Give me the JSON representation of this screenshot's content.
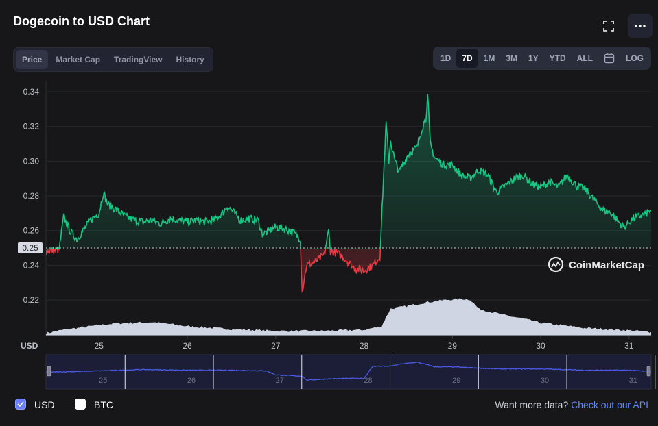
{
  "header": {
    "title": "Dogecoin to USD Chart",
    "fullscreen_icon": "fullscreen-icon",
    "more_icon": "more-horizontal-icon"
  },
  "tabs": [
    {
      "label": "Price",
      "active": true
    },
    {
      "label": "Market Cap",
      "active": false
    },
    {
      "label": "TradingView",
      "active": false
    },
    {
      "label": "History",
      "active": false
    }
  ],
  "ranges": [
    {
      "label": "1D",
      "active": false
    },
    {
      "label": "7D",
      "active": true
    },
    {
      "label": "1M",
      "active": false
    },
    {
      "label": "3M",
      "active": false
    },
    {
      "label": "1Y",
      "active": false
    },
    {
      "label": "YTD",
      "active": false
    },
    {
      "label": "ALL",
      "active": false
    },
    {
      "label": "LOG",
      "active": false
    }
  ],
  "calendar_icon": "calendar-icon",
  "watermark": "CoinMarketCap",
  "footer": {
    "usd_label": "USD",
    "btc_label": "BTC",
    "more_text": "Want more data?",
    "api_link": "Check out our API",
    "usd_checked": true,
    "btc_checked": false
  },
  "colors": {
    "up": "#16c784",
    "down": "#ea3943",
    "volume": "#d0d5e4",
    "navigator_line": "#4a5be6",
    "link": "#6188ff"
  },
  "chart_data": {
    "type": "line",
    "ylabel": "",
    "xlabel": "USD",
    "ylim": [
      0.2,
      0.345
    ],
    "yticks": [
      0.22,
      0.24,
      0.26,
      0.28,
      0.3,
      0.32,
      0.34
    ],
    "xlim": [
      24.4,
      31.25
    ],
    "xticks": [
      "25",
      "26",
      "27",
      "28",
      "29",
      "30",
      "31"
    ],
    "baseline": 0.25,
    "baseline_label": "0.25",
    "grid": true,
    "price_series": {
      "name": "Price",
      "x": [
        24.4,
        24.55,
        24.6,
        24.68,
        24.75,
        24.85,
        24.9,
        25.0,
        25.05,
        25.1,
        25.2,
        25.3,
        25.4,
        25.5,
        25.6,
        25.7,
        25.8,
        25.9,
        26.0,
        26.1,
        26.2,
        26.3,
        26.4,
        26.45,
        26.5,
        26.6,
        26.7,
        26.8,
        26.85,
        26.9,
        27.0,
        27.1,
        27.2,
        27.28,
        27.3,
        27.35,
        27.45,
        27.55,
        27.6,
        27.62,
        27.7,
        27.8,
        27.9,
        28.0,
        28.1,
        28.18,
        28.22,
        28.25,
        28.28,
        28.3,
        28.35,
        28.4,
        28.5,
        28.6,
        28.65,
        28.7,
        28.72,
        28.75,
        28.8,
        28.9,
        29.0,
        29.1,
        29.2,
        29.3,
        29.4,
        29.5,
        29.6,
        29.7,
        29.8,
        29.9,
        30.0,
        30.1,
        30.2,
        30.3,
        30.4,
        30.5,
        30.6,
        30.7,
        30.8,
        30.9,
        30.95,
        31.0,
        31.05,
        31.1,
        31.2,
        31.25
      ],
      "y": [
        0.248,
        0.249,
        0.268,
        0.259,
        0.255,
        0.262,
        0.266,
        0.27,
        0.282,
        0.275,
        0.272,
        0.268,
        0.266,
        0.265,
        0.266,
        0.264,
        0.267,
        0.266,
        0.265,
        0.266,
        0.265,
        0.266,
        0.27,
        0.274,
        0.272,
        0.266,
        0.267,
        0.266,
        0.258,
        0.259,
        0.262,
        0.261,
        0.259,
        0.255,
        0.225,
        0.24,
        0.242,
        0.246,
        0.26,
        0.248,
        0.247,
        0.243,
        0.238,
        0.237,
        0.24,
        0.245,
        0.29,
        0.322,
        0.3,
        0.312,
        0.3,
        0.294,
        0.304,
        0.308,
        0.318,
        0.325,
        0.338,
        0.31,
        0.302,
        0.298,
        0.298,
        0.292,
        0.29,
        0.295,
        0.292,
        0.282,
        0.286,
        0.29,
        0.292,
        0.287,
        0.285,
        0.288,
        0.285,
        0.292,
        0.286,
        0.284,
        0.278,
        0.272,
        0.27,
        0.264,
        0.262,
        0.265,
        0.267,
        0.268,
        0.27,
        0.272
      ]
    },
    "volume_series": {
      "name": "Volume",
      "x": [
        24.4,
        24.6,
        24.8,
        25.0,
        25.2,
        25.4,
        25.6,
        25.8,
        26.0,
        26.5,
        27.0,
        27.5,
        28.0,
        28.2,
        28.25,
        28.3,
        28.5,
        28.7,
        28.9,
        29.1,
        29.2,
        29.3,
        29.4,
        29.6,
        29.8,
        30.0,
        30.5,
        31.0,
        31.25
      ],
      "y": [
        0.4,
        1.0,
        1.4,
        1.8,
        2.1,
        2.2,
        2.3,
        2.0,
        1.6,
        1.1,
        0.8,
        0.8,
        1.0,
        1.6,
        3.2,
        4.6,
        5.1,
        5.7,
        6.1,
        6.3,
        6.2,
        4.6,
        4.2,
        3.5,
        2.9,
        2.2,
        1.3,
        0.9,
        0.6
      ]
    },
    "navigator": {
      "x": [
        24.4,
        25.0,
        25.5,
        26.0,
        26.5,
        26.9,
        27.0,
        27.3,
        27.35,
        27.6,
        28.0,
        28.1,
        28.3,
        28.4,
        28.6,
        28.75,
        28.8,
        29.0,
        29.5,
        30.0,
        30.5,
        31.0,
        31.25
      ],
      "y": [
        0.253,
        0.255,
        0.257,
        0.256,
        0.256,
        0.255,
        0.249,
        0.247,
        0.241,
        0.243,
        0.244,
        0.262,
        0.262,
        0.265,
        0.268,
        0.263,
        0.261,
        0.261,
        0.258,
        0.258,
        0.256,
        0.256,
        0.254
      ],
      "xticks": [
        "25",
        "26",
        "27",
        "28",
        "29",
        "30",
        "31"
      ]
    }
  }
}
